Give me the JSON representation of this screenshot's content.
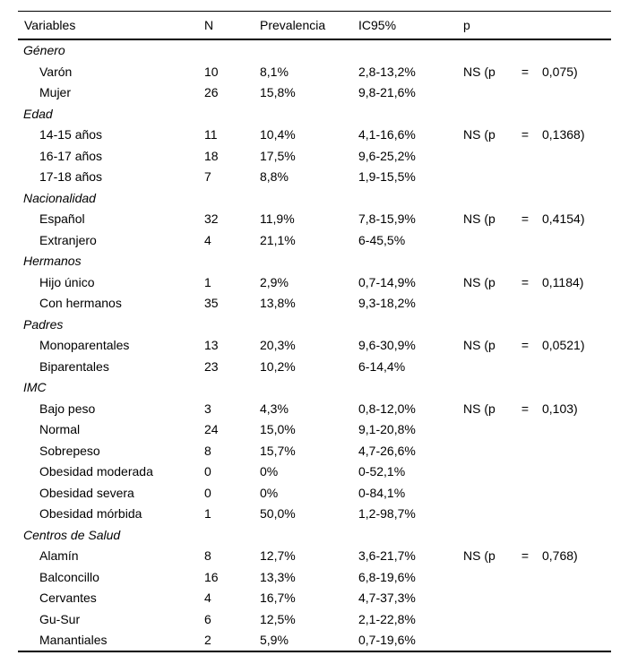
{
  "table": {
    "headers": [
      "Variables",
      "N",
      "Prevalencia",
      "IC95%",
      "p"
    ],
    "groups": [
      {
        "label": "Género",
        "rows": [
          {
            "variable": "Varón",
            "n": "10",
            "prevalencia": "8,1%",
            "ic95": "2,8-13,2%",
            "p_prefix": "NS (p",
            "p_eq": "=",
            "p_value": "0,075)"
          },
          {
            "variable": "Mujer",
            "n": "26",
            "prevalencia": "15,8%",
            "ic95": "9,8-21,6%",
            "p_prefix": "",
            "p_eq": "",
            "p_value": ""
          }
        ]
      },
      {
        "label": "Edad",
        "rows": [
          {
            "variable": "14-15 años",
            "n": "11",
            "prevalencia": "10,4%",
            "ic95": "4,1-16,6%",
            "p_prefix": "NS (p",
            "p_eq": "=",
            "p_value": "0,1368)"
          },
          {
            "variable": "16-17 años",
            "n": "18",
            "prevalencia": "17,5%",
            "ic95": "9,6-25,2%",
            "p_prefix": "",
            "p_eq": "",
            "p_value": ""
          },
          {
            "variable": "17-18 años",
            "n": "7",
            "prevalencia": "8,8%",
            "ic95": "1,9-15,5%",
            "p_prefix": "",
            "p_eq": "",
            "p_value": ""
          }
        ]
      },
      {
        "label": "Nacionalidad",
        "rows": [
          {
            "variable": "Español",
            "n": "32",
            "prevalencia": "11,9%",
            "ic95": "7,8-15,9%",
            "p_prefix": "NS (p",
            "p_eq": "=",
            "p_value": "0,4154)"
          },
          {
            "variable": "Extranjero",
            "n": "4",
            "prevalencia": "21,1%",
            "ic95": "6-45,5%",
            "p_prefix": "",
            "p_eq": "",
            "p_value": ""
          }
        ]
      },
      {
        "label": "Hermanos",
        "rows": [
          {
            "variable": "Hijo único",
            "n": "1",
            "prevalencia": "2,9%",
            "ic95": "0,7-14,9%",
            "p_prefix": "NS (p",
            "p_eq": "=",
            "p_value": "0,1184)"
          },
          {
            "variable": "Con hermanos",
            "n": "35",
            "prevalencia": "13,8%",
            "ic95": "9,3-18,2%",
            "p_prefix": "",
            "p_eq": "",
            "p_value": ""
          }
        ]
      },
      {
        "label": "Padres",
        "rows": [
          {
            "variable": "Monoparentales",
            "n": "13",
            "prevalencia": "20,3%",
            "ic95": "9,6-30,9%",
            "p_prefix": "NS (p",
            "p_eq": "=",
            "p_value": "0,0521)"
          },
          {
            "variable": "Biparentales",
            "n": "23",
            "prevalencia": "10,2%",
            "ic95": "6-14,4%",
            "p_prefix": "",
            "p_eq": "",
            "p_value": ""
          }
        ]
      },
      {
        "label": "IMC",
        "rows": [
          {
            "variable": "Bajo peso",
            "n": "3",
            "prevalencia": "4,3%",
            "ic95": "0,8-12,0%",
            "p_prefix": "NS (p",
            "p_eq": "=",
            "p_value": "0,103)"
          },
          {
            "variable": "Normal",
            "n": "24",
            "prevalencia": "15,0%",
            "ic95": "9,1-20,8%",
            "p_prefix": "",
            "p_eq": "",
            "p_value": ""
          },
          {
            "variable": "Sobrepeso",
            "n": "8",
            "prevalencia": "15,7%",
            "ic95": "4,7-26,6%",
            "p_prefix": "",
            "p_eq": "",
            "p_value": ""
          },
          {
            "variable": "Obesidad moderada",
            "n": "0",
            "prevalencia": "0%",
            "ic95": "0-52,1%",
            "p_prefix": "",
            "p_eq": "",
            "p_value": ""
          },
          {
            "variable": "Obesidad severa",
            "n": "0",
            "prevalencia": "0%",
            "ic95": "0-84,1%",
            "p_prefix": "",
            "p_eq": "",
            "p_value": ""
          },
          {
            "variable": "Obesidad mórbida",
            "n": "1",
            "prevalencia": "50,0%",
            "ic95": "1,2-98,7%",
            "p_prefix": "",
            "p_eq": "",
            "p_value": ""
          }
        ]
      },
      {
        "label": "Centros de Salud",
        "rows": [
          {
            "variable": "Alamín",
            "n": "8",
            "prevalencia": "12,7%",
            "ic95": "3,6-21,7%",
            "p_prefix": "NS (p",
            "p_eq": "=",
            "p_value": "0,768)"
          },
          {
            "variable": "Balconcillo",
            "n": "16",
            "prevalencia": "13,3%",
            "ic95": "6,8-19,6%",
            "p_prefix": "",
            "p_eq": "",
            "p_value": ""
          },
          {
            "variable": "Cervantes",
            "n": "4",
            "prevalencia": "16,7%",
            "ic95": "4,7-37,3%",
            "p_prefix": "",
            "p_eq": "",
            "p_value": ""
          },
          {
            "variable": "Gu-Sur",
            "n": "6",
            "prevalencia": "12,5%",
            "ic95": "2,1-22,8%",
            "p_prefix": "",
            "p_eq": "",
            "p_value": ""
          },
          {
            "variable": "Manantiales",
            "n": "2",
            "prevalencia": "5,9%",
            "ic95": "0,7-19,6%",
            "p_prefix": "",
            "p_eq": "",
            "p_value": ""
          }
        ]
      }
    ],
    "colors": {
      "text": "#000000",
      "background": "#ffffff",
      "rule": "#000000"
    }
  }
}
